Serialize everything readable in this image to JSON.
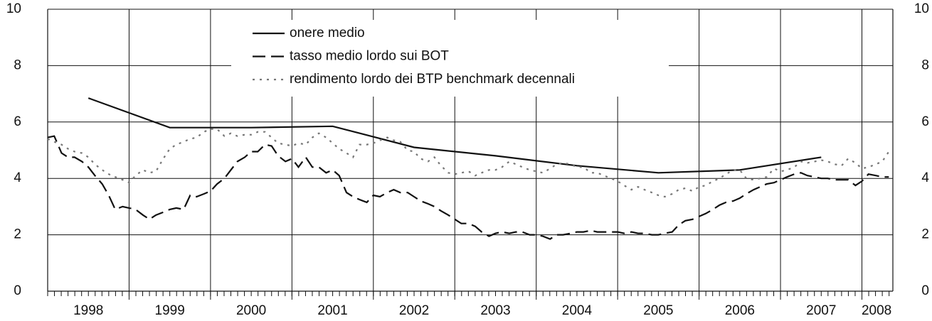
{
  "chart_data": {
    "type": "line",
    "x": [
      1998,
      1998.08,
      1998.17,
      1998.25,
      1998.33,
      1998.42,
      1998.5,
      1998.58,
      1998.67,
      1998.75,
      1998.83,
      1998.92,
      1999,
      1999.08,
      1999.17,
      1999.25,
      1999.33,
      1999.42,
      1999.5,
      1999.58,
      1999.67,
      1999.75,
      1999.83,
      1999.92,
      2000,
      2000.08,
      2000.17,
      2000.25,
      2000.33,
      2000.42,
      2000.5,
      2000.58,
      2000.67,
      2000.75,
      2000.83,
      2000.92,
      2001,
      2001.08,
      2001.17,
      2001.25,
      2001.33,
      2001.42,
      2001.5,
      2001.58,
      2001.67,
      2001.75,
      2001.83,
      2001.92,
      2002,
      2002.08,
      2002.17,
      2002.25,
      2002.33,
      2002.42,
      2002.5,
      2002.58,
      2002.67,
      2002.75,
      2002.83,
      2002.92,
      2003,
      2003.08,
      2003.17,
      2003.25,
      2003.33,
      2003.42,
      2003.5,
      2003.58,
      2003.67,
      2003.75,
      2003.83,
      2003.92,
      2004,
      2004.08,
      2004.17,
      2004.25,
      2004.33,
      2004.42,
      2004.5,
      2004.58,
      2004.67,
      2004.75,
      2004.83,
      2004.92,
      2005,
      2005.08,
      2005.17,
      2005.25,
      2005.33,
      2005.42,
      2005.5,
      2005.58,
      2005.67,
      2005.75,
      2005.83,
      2005.92,
      2006,
      2006.08,
      2006.17,
      2006.25,
      2006.33,
      2006.42,
      2006.5,
      2006.58,
      2006.67,
      2006.75,
      2006.83,
      2006.92,
      2007,
      2007.08,
      2007.17,
      2007.25,
      2007.33,
      2007.42,
      2007.5,
      2007.58,
      2007.67,
      2007.75,
      2007.83,
      2007.92,
      2008,
      2008.08,
      2008.17,
      2008.25,
      2008.33
    ],
    "series": [
      {
        "name": "onere medio",
        "color": "#111111",
        "style": "solid",
        "x": [
          1998.5,
          1999.5,
          2000.5,
          2001.5,
          2002.5,
          2003.5,
          2004.5,
          2005.5,
          2006.5,
          2007.5
        ],
        "values": [
          6.85,
          5.8,
          5.8,
          5.85,
          5.1,
          4.8,
          4.45,
          4.2,
          4.3,
          4.75
        ]
      },
      {
        "name": "tasso medio lordo sui BOT",
        "color": "#111111",
        "style": "dashed",
        "values": [
          5.45,
          5.5,
          4.9,
          4.75,
          4.75,
          4.6,
          4.4,
          4.1,
          3.8,
          3.4,
          2.9,
          3.0,
          2.95,
          2.9,
          2.7,
          2.55,
          2.7,
          2.8,
          2.9,
          2.95,
          2.9,
          3.4,
          3.35,
          3.45,
          3.55,
          3.8,
          4.0,
          4.3,
          4.6,
          4.75,
          4.95,
          4.95,
          5.2,
          5.15,
          4.8,
          4.6,
          4.7,
          4.4,
          4.75,
          4.4,
          4.4,
          4.2,
          4.3,
          4.1,
          3.5,
          3.35,
          3.25,
          3.15,
          3.4,
          3.35,
          3.5,
          3.6,
          3.5,
          3.5,
          3.35,
          3.2,
          3.1,
          3.0,
          2.85,
          2.7,
          2.55,
          2.4,
          2.4,
          2.3,
          2.1,
          1.95,
          2.05,
          2.1,
          2.05,
          2.1,
          2.1,
          2.0,
          2.0,
          1.95,
          1.85,
          2.0,
          2.0,
          2.05,
          2.1,
          2.1,
          2.15,
          2.1,
          2.1,
          2.1,
          2.1,
          2.05,
          2.1,
          2.05,
          2.05,
          2.0,
          2.0,
          2.05,
          2.1,
          2.35,
          2.5,
          2.55,
          2.65,
          2.75,
          2.9,
          3.05,
          3.15,
          3.2,
          3.3,
          3.45,
          3.6,
          3.7,
          3.8,
          3.85,
          3.95,
          4.05,
          4.15,
          4.2,
          4.1,
          4.05,
          4.0,
          4.0,
          3.95,
          3.95,
          3.95,
          3.75,
          3.9,
          4.15,
          4.1,
          4.05,
          4.05
        ]
      },
      {
        "name": "rendimento lordo dei BTP benchmark decennali",
        "color": "#777777",
        "style": "dotted",
        "values": [
          5.4,
          5.3,
          5.2,
          5.05,
          4.95,
          4.9,
          4.75,
          4.5,
          4.3,
          4.15,
          4.05,
          3.95,
          3.85,
          4.1,
          4.3,
          4.2,
          4.25,
          4.7,
          5.05,
          5.2,
          5.3,
          5.4,
          5.45,
          5.65,
          5.75,
          5.75,
          5.5,
          5.6,
          5.5,
          5.55,
          5.55,
          5.65,
          5.65,
          5.45,
          5.25,
          5.2,
          5.15,
          5.25,
          5.2,
          5.45,
          5.6,
          5.45,
          5.25,
          5.05,
          4.9,
          4.75,
          5.2,
          5.2,
          5.25,
          5.35,
          5.45,
          5.35,
          5.3,
          5.0,
          4.95,
          4.7,
          4.6,
          4.75,
          4.45,
          4.2,
          4.15,
          4.2,
          4.25,
          4.1,
          4.2,
          4.3,
          4.3,
          4.4,
          4.6,
          4.5,
          4.4,
          4.3,
          4.25,
          4.2,
          4.35,
          4.5,
          4.55,
          4.5,
          4.4,
          4.4,
          4.2,
          4.2,
          4.1,
          4.0,
          3.9,
          3.75,
          3.6,
          3.7,
          3.6,
          3.5,
          3.4,
          3.35,
          3.45,
          3.6,
          3.65,
          3.55,
          3.7,
          3.75,
          3.9,
          4.0,
          4.15,
          4.3,
          4.3,
          4.0,
          3.95,
          4.0,
          4.05,
          4.35,
          4.25,
          4.3,
          4.4,
          4.6,
          4.55,
          4.6,
          4.65,
          4.6,
          4.5,
          4.45,
          4.7,
          4.55,
          4.35,
          4.4,
          4.5,
          4.6,
          4.95
        ]
      }
    ],
    "xlim": [
      1998,
      2008.38
    ],
    "xticks": [
      {
        "value": 1998.5,
        "label": "1998"
      },
      {
        "value": 1999.5,
        "label": "1999"
      },
      {
        "value": 2000.5,
        "label": "2000"
      },
      {
        "value": 2001.5,
        "label": "2001"
      },
      {
        "value": 2002.5,
        "label": "2002"
      },
      {
        "value": 2003.5,
        "label": "2003"
      },
      {
        "value": 2004.5,
        "label": "2004"
      },
      {
        "value": 2005.5,
        "label": "2005"
      },
      {
        "value": 2006.5,
        "label": "2006"
      },
      {
        "value": 2007.5,
        "label": "2007"
      },
      {
        "value": 2008.18,
        "label": "2008"
      }
    ],
    "ylim": [
      0,
      10
    ],
    "yticks": [
      0,
      2,
      4,
      6,
      8,
      10
    ],
    "y2lim": [
      0,
      10
    ],
    "y2ticks": [
      0,
      2,
      4,
      6,
      8,
      10
    ],
    "grid": true,
    "legend": "top"
  }
}
